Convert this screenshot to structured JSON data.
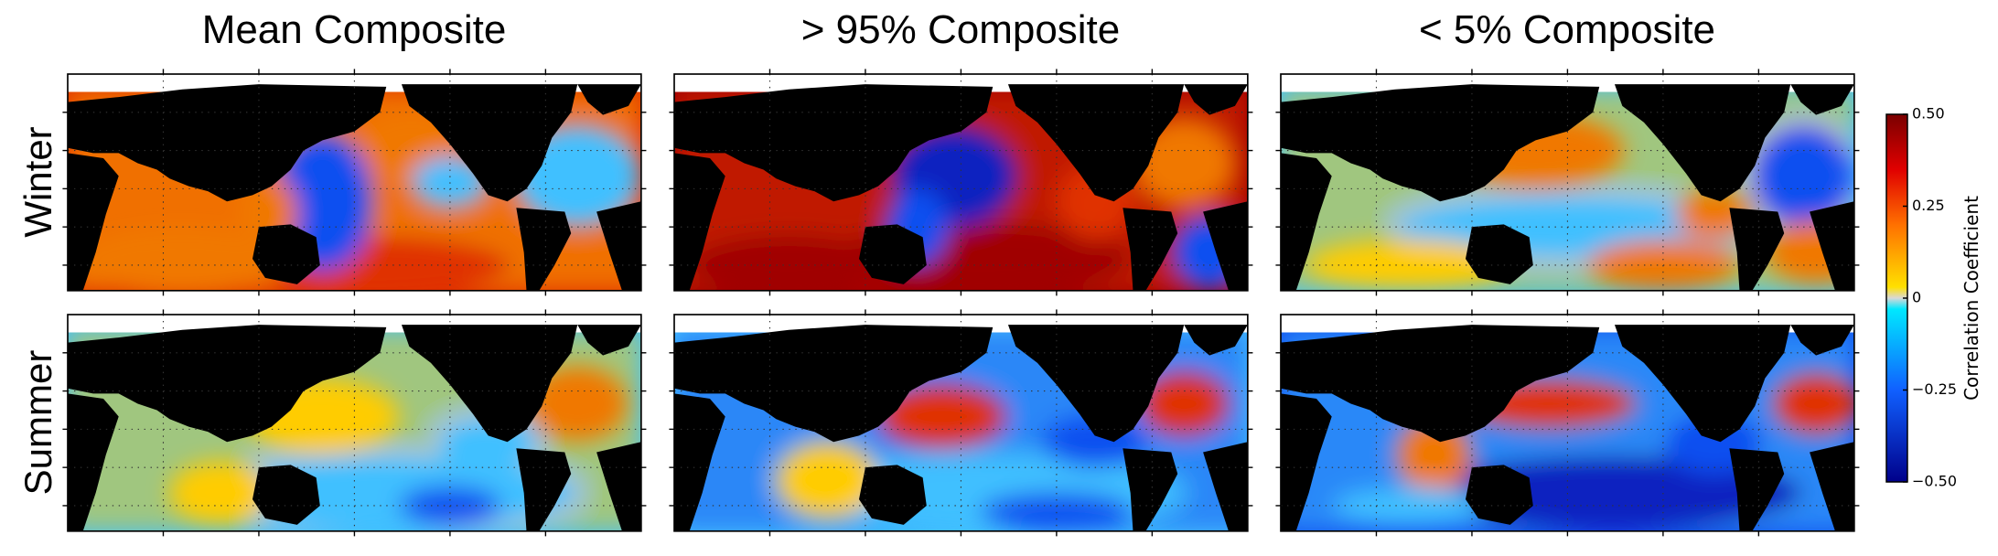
{
  "titles": [
    "Mean Composite",
    "> 95% Composite",
    "< 5% Composite"
  ],
  "row_labels": [
    "Winter",
    "Summer"
  ],
  "colorbar": {
    "label": "Correlation Coefficient",
    "ylim": [
      -0.5,
      0.5
    ],
    "yticks": [
      {
        "value": 0.5,
        "label": "0.50"
      },
      {
        "value": 0.25,
        "label": "0.25"
      },
      0,
      {
        "value": -0.25,
        "label": "−0.25"
      },
      {
        "value": -0.5,
        "label": "−0.50"
      }
    ]
  }
}
